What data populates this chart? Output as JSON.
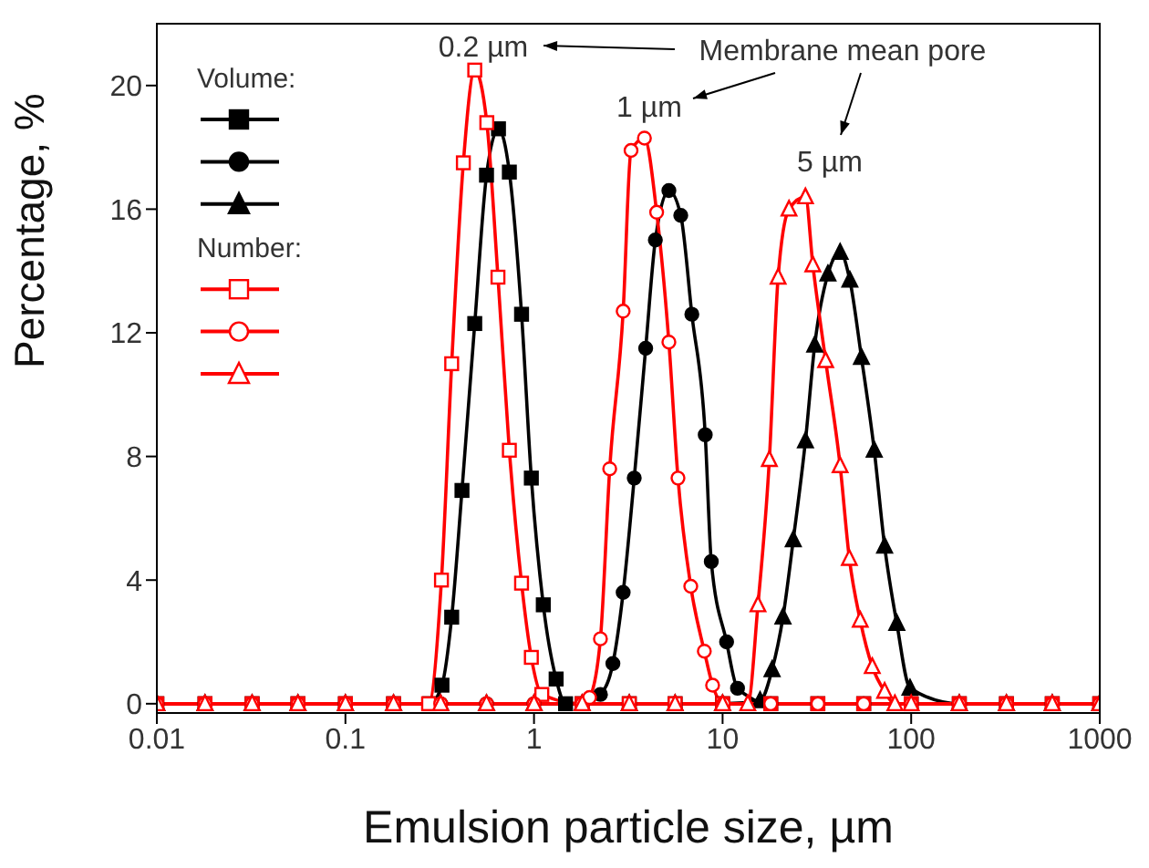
{
  "chart_data": {
    "type": "line",
    "xlabel": "Emulsion particle size, µm",
    "ylabel": "Percentage, %",
    "log": "x",
    "xlim": [
      0.01,
      1000
    ],
    "xticks": [
      0.01,
      0.1,
      1,
      10,
      100,
      1000
    ],
    "ylim": [
      -0.3,
      22
    ],
    "yticks": [
      0,
      4,
      8,
      12,
      16,
      20
    ],
    "grid": false,
    "line_style": "solid",
    "annotations": [
      "Membrane mean pore",
      "Volume:",
      "Number:",
      "0.2 µm",
      "1 µm",
      "5 µm"
    ],
    "series": [
      {
        "color": "#000000",
        "marker": "square",
        "x": [
          0.01,
          0.018,
          0.032,
          0.056,
          0.1,
          0.18,
          0.28,
          0.325,
          0.366,
          0.415,
          0.485,
          0.56,
          0.648,
          0.74,
          0.859,
          0.968,
          1.12,
          1.31,
          1.47,
          1.8,
          3.2,
          5.6,
          10,
          18,
          32,
          56,
          100,
          180,
          320,
          560,
          1000
        ],
        "values": [
          0,
          0,
          0,
          0,
          0,
          0,
          0,
          0.6,
          2.8,
          6.9,
          12.3,
          17.1,
          18.6,
          17.2,
          12.6,
          7.3,
          3.2,
          0.8,
          0,
          0,
          0,
          0,
          0,
          0,
          0,
          0,
          0,
          0,
          0,
          0,
          0
        ]
      },
      {
        "color": "#000000",
        "marker": "circle",
        "x": [
          0.01,
          0.018,
          0.032,
          0.056,
          0.1,
          0.18,
          0.32,
          0.56,
          1,
          1.8,
          2.25,
          2.62,
          2.97,
          3.4,
          3.91,
          4.4,
          5.19,
          6,
          6.87,
          8.09,
          8.71,
          10.5,
          12,
          18,
          32,
          56,
          100,
          180,
          320,
          560,
          1000
        ],
        "values": [
          0,
          0,
          0,
          0,
          0,
          0,
          0,
          0,
          0,
          0,
          0.3,
          1.3,
          3.6,
          7.3,
          11.5,
          15,
          16.6,
          15.8,
          12.6,
          8.7,
          4.6,
          2,
          0.5,
          0,
          0,
          0,
          0,
          0,
          0,
          0,
          0
        ]
      },
      {
        "color": "#000000",
        "marker": "triangle",
        "x": [
          0.01,
          0.018,
          0.032,
          0.056,
          0.1,
          0.18,
          0.32,
          0.56,
          1,
          1.8,
          3.2,
          5.6,
          10,
          15.8,
          18.3,
          20.9,
          23.7,
          27.5,
          30.8,
          36.2,
          42,
          47.3,
          54.5,
          63.7,
          72.3,
          83.9,
          98.6,
          180,
          320,
          560,
          1000
        ],
        "values": [
          0,
          0,
          0,
          0,
          0,
          0,
          0,
          0,
          0,
          0,
          0,
          0,
          0,
          0.1,
          1.1,
          2.8,
          5.3,
          8.5,
          11.6,
          13.9,
          14.6,
          13.7,
          11.2,
          8.2,
          5.1,
          2.6,
          0.5,
          0,
          0,
          0,
          0
        ]
      },
      {
        "color": "#ff0000",
        "marker": "square",
        "x": [
          0.01,
          0.018,
          0.032,
          0.056,
          0.1,
          0.18,
          0.276,
          0.323,
          0.366,
          0.422,
          0.485,
          0.562,
          0.644,
          0.74,
          0.859,
          0.968,
          1.1,
          1.8,
          3.2,
          5.6,
          10,
          18,
          32,
          56,
          100,
          180,
          320,
          560,
          1000
        ],
        "values": [
          0,
          0,
          0,
          0,
          0,
          0,
          0,
          4,
          11,
          17.5,
          20.5,
          18.8,
          13.8,
          8.2,
          3.9,
          1.5,
          0.3,
          0,
          0,
          0,
          0,
          0,
          0,
          0,
          0,
          0,
          0,
          0,
          0
        ]
      },
      {
        "color": "#ff0000",
        "marker": "circle",
        "x": [
          0.01,
          0.018,
          0.032,
          0.056,
          0.1,
          0.18,
          0.32,
          0.56,
          1,
          1.8,
          1.97,
          2.25,
          2.52,
          2.97,
          3.27,
          3.85,
          4.47,
          5.19,
          5.8,
          6.78,
          8,
          8.85,
          10.1,
          18,
          32,
          56,
          100,
          180,
          320,
          560,
          1000
        ],
        "values": [
          0,
          0,
          0,
          0,
          0,
          0,
          0,
          0,
          0,
          0,
          0.2,
          2.1,
          7.6,
          12.7,
          17.9,
          18.3,
          15.9,
          11.7,
          7.3,
          3.8,
          1.7,
          0.6,
          0,
          0,
          0,
          0,
          0,
          0,
          0,
          0,
          0
        ]
      },
      {
        "color": "#ff0000",
        "marker": "triangle",
        "x": [
          0.01,
          0.018,
          0.032,
          0.056,
          0.1,
          0.18,
          0.32,
          0.56,
          1,
          1.8,
          3.2,
          5.6,
          10,
          13.6,
          15.4,
          17.7,
          19.7,
          22.5,
          27.5,
          30.1,
          35.2,
          42,
          47,
          53.7,
          62.2,
          72.3,
          82,
          100,
          180,
          320,
          560,
          1000
        ],
        "values": [
          0,
          0,
          0,
          0,
          0,
          0,
          0,
          0,
          0,
          0,
          0,
          0,
          0,
          0,
          3.2,
          7.9,
          13.8,
          16,
          16.4,
          14.2,
          11.1,
          7.7,
          4.7,
          2.7,
          1.2,
          0.4,
          0,
          0,
          0,
          0,
          0,
          0
        ]
      }
    ]
  }
}
